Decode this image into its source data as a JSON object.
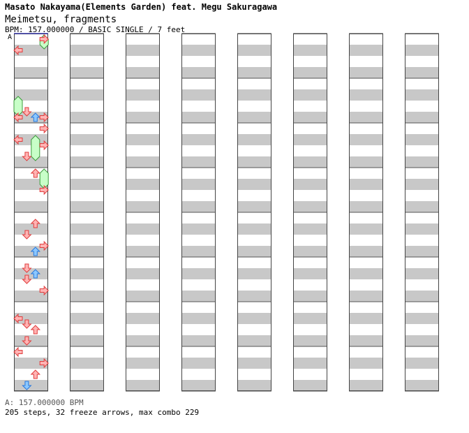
{
  "header": {
    "artist": "Masato Nakayama(Elements Garden) feat. Megu Sakuragawa",
    "title": "Meimetsu, fragments",
    "meta": "BPM: 157.000000 / BASIC SINGLE / 7 feet",
    "bpm_marker": "A"
  },
  "footer": {
    "bpm_line": "A: 157.000000 BPM",
    "stats": "205 steps, 32 freeze arrows, max combo 229"
  },
  "colors": {
    "stripe": "#c8c8c8",
    "red_fill": "#ffb4b4",
    "red_stroke": "#e03c3c",
    "blue_fill": "#8cc8ff",
    "blue_stroke": "#2878dc",
    "freeze_fill": "#c8ffc8",
    "freeze_stroke": "#3c9c3c"
  },
  "chart_data": {
    "type": "step-chart",
    "columns": 8,
    "measures_per_column": 8,
    "lanes": [
      "left",
      "down",
      "up",
      "right"
    ],
    "notes": [
      {
        "m": 0,
        "b": 1.0,
        "lane": "left",
        "c": "red"
      },
      {
        "m": 0,
        "b": 0.0,
        "lane": "right",
        "c": "red"
      },
      {
        "m": 1,
        "b": 3.0,
        "lane": "left",
        "c": "red"
      },
      {
        "m": 1,
        "b": 2.5,
        "lane": "down",
        "c": "red"
      },
      {
        "m": 1,
        "b": 3.0,
        "lane": "up",
        "c": "blue"
      },
      {
        "m": 1,
        "b": 3.0,
        "lane": "right",
        "c": "red"
      },
      {
        "m": 2,
        "b": 0.0,
        "lane": "right",
        "c": "red"
      },
      {
        "m": 2,
        "b": 1.0,
        "lane": "left",
        "c": "red"
      },
      {
        "m": 2,
        "b": 1.5,
        "lane": "right",
        "c": "red"
      },
      {
        "m": 2,
        "b": 2.5,
        "lane": "down",
        "c": "red"
      },
      {
        "m": 3,
        "b": 0.0,
        "lane": "up",
        "c": "red"
      },
      {
        "m": 3,
        "b": 1.5,
        "lane": "right",
        "c": "red"
      },
      {
        "m": 4,
        "b": 0.5,
        "lane": "up",
        "c": "red"
      },
      {
        "m": 4,
        "b": 1.5,
        "lane": "down",
        "c": "red"
      },
      {
        "m": 4,
        "b": 2.5,
        "lane": "right",
        "c": "red"
      },
      {
        "m": 4,
        "b": 3.0,
        "lane": "up",
        "c": "blue"
      },
      {
        "m": 5,
        "b": 0.5,
        "lane": "down",
        "c": "red"
      },
      {
        "m": 5,
        "b": 1.0,
        "lane": "up",
        "c": "blue"
      },
      {
        "m": 5,
        "b": 1.5,
        "lane": "down",
        "c": "red"
      },
      {
        "m": 5,
        "b": 2.5,
        "lane": "right",
        "c": "red"
      },
      {
        "m": 6,
        "b": 1.0,
        "lane": "left",
        "c": "red"
      },
      {
        "m": 6,
        "b": 1.5,
        "lane": "down",
        "c": "red"
      },
      {
        "m": 6,
        "b": 2.0,
        "lane": "up",
        "c": "red"
      },
      {
        "m": 6,
        "b": 3.0,
        "lane": "down",
        "c": "red"
      },
      {
        "m": 7,
        "b": 0.0,
        "lane": "left",
        "c": "red"
      },
      {
        "m": 7,
        "b": 1.0,
        "lane": "right",
        "c": "red"
      },
      {
        "m": 7,
        "b": 2.0,
        "lane": "up",
        "c": "red"
      },
      {
        "m": 7,
        "b": 3.0,
        "lane": "down",
        "c": "blue"
      }
    ],
    "freezes": [
      {
        "m": 0,
        "b0": 0.0,
        "b1": 0.5,
        "lane": "right"
      },
      {
        "m": 1,
        "b0": 1.5,
        "b1": 2.5,
        "lane": "left"
      },
      {
        "m": 2,
        "b0": 1.0,
        "b1": 2.5,
        "lane": "up"
      },
      {
        "m": 3,
        "b0": 0.0,
        "b1": 1.0,
        "lane": "right"
      }
    ]
  }
}
